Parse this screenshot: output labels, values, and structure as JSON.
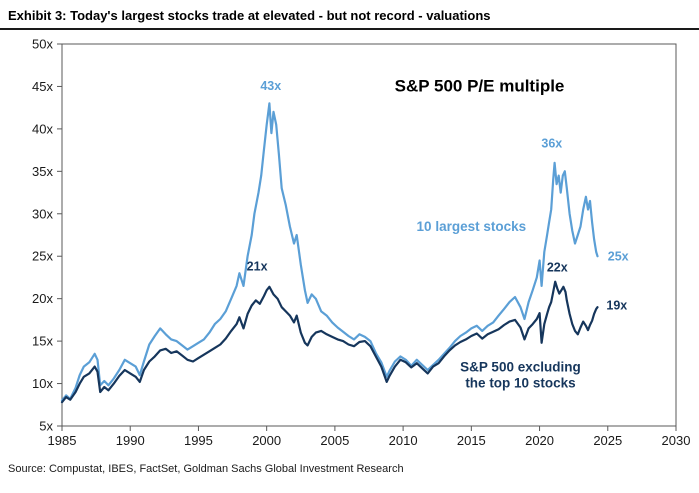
{
  "header": {
    "title": "Exhibit 3: Today's largest stocks trade at elevated - but not record - valuations"
  },
  "footer": {
    "source": "Source: Compustat, IBES, FactSet, Goldman Sachs Global Investment Research"
  },
  "colors": {
    "light_blue": "#5b9fd6",
    "navy": "#16365c",
    "frame": "#595959",
    "axis_text": "#1a1a1a"
  },
  "chart_data": {
    "type": "line",
    "title": "S&P 500 P/E multiple",
    "xlim": [
      1985,
      2030
    ],
    "ylim": [
      5,
      50
    ],
    "x_ticks": [
      1985,
      1990,
      1995,
      2000,
      2005,
      2010,
      2015,
      2020,
      2025,
      2030
    ],
    "y_ticks": [
      5,
      10,
      15,
      20,
      25,
      30,
      35,
      40,
      45,
      50
    ],
    "y_tick_suffix": "x",
    "grid": false,
    "legend_position": "inline-annotations",
    "series": [
      {
        "name": "10 largest stocks",
        "color": "#5b9fd6",
        "width": 2.2,
        "points": [
          [
            1985.0,
            8.0
          ],
          [
            1985.3,
            8.6
          ],
          [
            1985.6,
            8.2
          ],
          [
            1986.0,
            9.5
          ],
          [
            1986.3,
            11.0
          ],
          [
            1986.6,
            12.0
          ],
          [
            1987.0,
            12.5
          ],
          [
            1987.4,
            13.5
          ],
          [
            1987.6,
            12.8
          ],
          [
            1987.8,
            9.8
          ],
          [
            1988.1,
            10.3
          ],
          [
            1988.4,
            9.8
          ],
          [
            1988.8,
            10.6
          ],
          [
            1989.2,
            11.6
          ],
          [
            1989.6,
            12.8
          ],
          [
            1990.0,
            12.4
          ],
          [
            1990.4,
            12.0
          ],
          [
            1990.7,
            11.0
          ],
          [
            1991.0,
            12.6
          ],
          [
            1991.4,
            14.6
          ],
          [
            1991.8,
            15.6
          ],
          [
            1992.2,
            16.5
          ],
          [
            1992.6,
            15.8
          ],
          [
            1993.0,
            15.2
          ],
          [
            1993.4,
            15.0
          ],
          [
            1993.8,
            14.5
          ],
          [
            1994.2,
            14.0
          ],
          [
            1994.6,
            14.4
          ],
          [
            1995.0,
            14.8
          ],
          [
            1995.4,
            15.2
          ],
          [
            1995.8,
            16.0
          ],
          [
            1996.2,
            17.0
          ],
          [
            1996.6,
            17.6
          ],
          [
            1997.0,
            18.5
          ],
          [
            1997.4,
            20.0
          ],
          [
            1997.8,
            21.5
          ],
          [
            1998.0,
            23.0
          ],
          [
            1998.3,
            21.5
          ],
          [
            1998.6,
            25.0
          ],
          [
            1998.9,
            27.5
          ],
          [
            1999.1,
            30.0
          ],
          [
            1999.4,
            32.5
          ],
          [
            1999.6,
            34.5
          ],
          [
            1999.8,
            37.5
          ],
          [
            2000.0,
            40.5
          ],
          [
            2000.2,
            43.0
          ],
          [
            2000.35,
            39.5
          ],
          [
            2000.5,
            42.0
          ],
          [
            2000.7,
            40.5
          ],
          [
            2000.9,
            37.0
          ],
          [
            2001.1,
            33.0
          ],
          [
            2001.4,
            31.0
          ],
          [
            2001.7,
            28.5
          ],
          [
            2002.0,
            26.5
          ],
          [
            2002.2,
            27.5
          ],
          [
            2002.5,
            24.0
          ],
          [
            2002.8,
            21.0
          ],
          [
            2003.0,
            19.5
          ],
          [
            2003.3,
            20.5
          ],
          [
            2003.6,
            20.0
          ],
          [
            2004.0,
            18.5
          ],
          [
            2004.4,
            18.0
          ],
          [
            2004.8,
            17.2
          ],
          [
            2005.2,
            16.6
          ],
          [
            2005.6,
            16.1
          ],
          [
            2006.0,
            15.6
          ],
          [
            2006.4,
            15.2
          ],
          [
            2006.8,
            15.8
          ],
          [
            2007.2,
            15.5
          ],
          [
            2007.6,
            15.0
          ],
          [
            2008.0,
            13.6
          ],
          [
            2008.4,
            12.5
          ],
          [
            2008.8,
            10.8
          ],
          [
            2009.0,
            11.5
          ],
          [
            2009.4,
            12.6
          ],
          [
            2009.8,
            13.2
          ],
          [
            2010.2,
            12.8
          ],
          [
            2010.6,
            12.1
          ],
          [
            2011.0,
            12.8
          ],
          [
            2011.4,
            12.2
          ],
          [
            2011.8,
            11.6
          ],
          [
            2012.2,
            12.2
          ],
          [
            2012.6,
            12.8
          ],
          [
            2013.0,
            13.5
          ],
          [
            2013.4,
            14.2
          ],
          [
            2013.8,
            15.0
          ],
          [
            2014.2,
            15.6
          ],
          [
            2014.6,
            16.0
          ],
          [
            2015.0,
            16.5
          ],
          [
            2015.4,
            16.8
          ],
          [
            2015.8,
            16.2
          ],
          [
            2016.2,
            16.8
          ],
          [
            2016.6,
            17.2
          ],
          [
            2017.0,
            18.0
          ],
          [
            2017.4,
            18.8
          ],
          [
            2017.8,
            19.6
          ],
          [
            2018.2,
            20.2
          ],
          [
            2018.6,
            19.0
          ],
          [
            2018.9,
            17.6
          ],
          [
            2019.2,
            19.6
          ],
          [
            2019.5,
            21.0
          ],
          [
            2019.8,
            22.5
          ],
          [
            2020.0,
            24.5
          ],
          [
            2020.15,
            21.5
          ],
          [
            2020.35,
            25.5
          ],
          [
            2020.55,
            27.5
          ],
          [
            2020.7,
            29.0
          ],
          [
            2020.85,
            30.5
          ],
          [
            2021.0,
            34.0
          ],
          [
            2021.1,
            36.0
          ],
          [
            2021.25,
            33.5
          ],
          [
            2021.4,
            34.5
          ],
          [
            2021.55,
            32.5
          ],
          [
            2021.7,
            34.5
          ],
          [
            2021.85,
            35.0
          ],
          [
            2022.0,
            33.0
          ],
          [
            2022.2,
            30.0
          ],
          [
            2022.4,
            28.0
          ],
          [
            2022.6,
            26.5
          ],
          [
            2022.8,
            27.5
          ],
          [
            2023.0,
            28.5
          ],
          [
            2023.2,
            30.5
          ],
          [
            2023.4,
            32.0
          ],
          [
            2023.55,
            30.5
          ],
          [
            2023.7,
            31.5
          ],
          [
            2023.85,
            29.0
          ],
          [
            2024.0,
            27.0
          ],
          [
            2024.15,
            25.5
          ],
          [
            2024.25,
            25.0
          ]
        ]
      },
      {
        "name": "S&P 500 excluding the top 10 stocks",
        "color": "#16365c",
        "width": 2.2,
        "points": [
          [
            1985.0,
            7.8
          ],
          [
            1985.3,
            8.4
          ],
          [
            1985.6,
            8.1
          ],
          [
            1986.0,
            9.0
          ],
          [
            1986.3,
            10.0
          ],
          [
            1986.6,
            10.8
          ],
          [
            1987.0,
            11.2
          ],
          [
            1987.4,
            12.0
          ],
          [
            1987.6,
            11.4
          ],
          [
            1987.8,
            9.0
          ],
          [
            1988.1,
            9.6
          ],
          [
            1988.4,
            9.2
          ],
          [
            1988.8,
            10.0
          ],
          [
            1989.2,
            10.9
          ],
          [
            1989.6,
            11.6
          ],
          [
            1990.0,
            11.2
          ],
          [
            1990.4,
            10.8
          ],
          [
            1990.7,
            10.2
          ],
          [
            1991.0,
            11.6
          ],
          [
            1991.4,
            12.6
          ],
          [
            1991.8,
            13.2
          ],
          [
            1992.2,
            13.9
          ],
          [
            1992.6,
            14.1
          ],
          [
            1993.0,
            13.6
          ],
          [
            1993.4,
            13.8
          ],
          [
            1993.8,
            13.3
          ],
          [
            1994.2,
            12.8
          ],
          [
            1994.6,
            12.6
          ],
          [
            1995.0,
            13.0
          ],
          [
            1995.4,
            13.4
          ],
          [
            1995.8,
            13.8
          ],
          [
            1996.2,
            14.2
          ],
          [
            1996.6,
            14.6
          ],
          [
            1997.0,
            15.3
          ],
          [
            1997.4,
            16.2
          ],
          [
            1997.8,
            17.0
          ],
          [
            1998.0,
            17.8
          ],
          [
            1998.3,
            16.5
          ],
          [
            1998.6,
            18.2
          ],
          [
            1998.9,
            19.2
          ],
          [
            1999.2,
            19.8
          ],
          [
            1999.5,
            19.4
          ],
          [
            1999.8,
            20.3
          ],
          [
            2000.0,
            21.0
          ],
          [
            2000.2,
            21.4
          ],
          [
            2000.5,
            20.5
          ],
          [
            2000.8,
            20.0
          ],
          [
            2001.1,
            19.0
          ],
          [
            2001.4,
            18.5
          ],
          [
            2001.7,
            18.0
          ],
          [
            2002.0,
            17.2
          ],
          [
            2002.2,
            18.0
          ],
          [
            2002.5,
            16.0
          ],
          [
            2002.8,
            14.8
          ],
          [
            2003.0,
            14.5
          ],
          [
            2003.3,
            15.5
          ],
          [
            2003.6,
            16.0
          ],
          [
            2004.0,
            16.2
          ],
          [
            2004.4,
            15.8
          ],
          [
            2004.8,
            15.5
          ],
          [
            2005.2,
            15.2
          ],
          [
            2005.6,
            15.0
          ],
          [
            2006.0,
            14.6
          ],
          [
            2006.4,
            14.4
          ],
          [
            2006.8,
            14.9
          ],
          [
            2007.2,
            15.0
          ],
          [
            2007.6,
            14.4
          ],
          [
            2008.0,
            13.2
          ],
          [
            2008.4,
            12.0
          ],
          [
            2008.8,
            10.2
          ],
          [
            2009.0,
            10.9
          ],
          [
            2009.4,
            12.0
          ],
          [
            2009.8,
            12.8
          ],
          [
            2010.2,
            12.5
          ],
          [
            2010.6,
            11.9
          ],
          [
            2011.0,
            12.4
          ],
          [
            2011.4,
            11.8
          ],
          [
            2011.8,
            11.2
          ],
          [
            2012.2,
            12.0
          ],
          [
            2012.6,
            12.4
          ],
          [
            2013.0,
            13.2
          ],
          [
            2013.4,
            13.9
          ],
          [
            2013.8,
            14.5
          ],
          [
            2014.2,
            14.9
          ],
          [
            2014.6,
            15.2
          ],
          [
            2015.0,
            15.6
          ],
          [
            2015.4,
            15.9
          ],
          [
            2015.8,
            15.3
          ],
          [
            2016.2,
            15.8
          ],
          [
            2016.6,
            16.1
          ],
          [
            2017.0,
            16.4
          ],
          [
            2017.4,
            16.9
          ],
          [
            2017.8,
            17.3
          ],
          [
            2018.2,
            17.5
          ],
          [
            2018.6,
            16.6
          ],
          [
            2018.9,
            15.2
          ],
          [
            2019.2,
            16.5
          ],
          [
            2019.5,
            17.0
          ],
          [
            2019.8,
            17.6
          ],
          [
            2020.0,
            18.3
          ],
          [
            2020.15,
            14.8
          ],
          [
            2020.35,
            17.0
          ],
          [
            2020.55,
            18.2
          ],
          [
            2020.7,
            19.0
          ],
          [
            2020.85,
            19.6
          ],
          [
            2021.0,
            20.8
          ],
          [
            2021.15,
            22.0
          ],
          [
            2021.3,
            21.2
          ],
          [
            2021.45,
            20.6
          ],
          [
            2021.6,
            21.0
          ],
          [
            2021.75,
            21.4
          ],
          [
            2021.9,
            20.8
          ],
          [
            2022.0,
            19.8
          ],
          [
            2022.2,
            18.2
          ],
          [
            2022.4,
            17.0
          ],
          [
            2022.6,
            16.2
          ],
          [
            2022.8,
            15.8
          ],
          [
            2023.0,
            16.6
          ],
          [
            2023.2,
            17.3
          ],
          [
            2023.4,
            16.8
          ],
          [
            2023.55,
            16.3
          ],
          [
            2023.7,
            16.9
          ],
          [
            2023.85,
            17.4
          ],
          [
            2024.0,
            18.2
          ],
          [
            2024.15,
            18.8
          ],
          [
            2024.25,
            19.0
          ]
        ]
      }
    ],
    "annotations": [
      {
        "text": "43x",
        "x": 2000.3,
        "y": 44.6,
        "anchor": "middle",
        "size": 12.5,
        "color": "#5b9fd6"
      },
      {
        "text": "S&P 500 P/E multiple",
        "x": 2015.6,
        "y": 44.4,
        "anchor": "middle",
        "size": 17,
        "color": "#000000"
      },
      {
        "text": "36x",
        "x": 2020.9,
        "y": 37.8,
        "anchor": "middle",
        "size": 12.5,
        "color": "#5b9fd6"
      },
      {
        "text": "25x",
        "x": 2025.0,
        "y": 24.5,
        "anchor": "start",
        "size": 12.5,
        "color": "#5b9fd6"
      },
      {
        "text": "21x",
        "x": 1999.3,
        "y": 23.3,
        "anchor": "middle",
        "size": 12.5,
        "color": "#16365c"
      },
      {
        "text": "22x",
        "x": 2021.3,
        "y": 23.2,
        "anchor": "middle",
        "size": 12.5,
        "color": "#16365c"
      },
      {
        "text": "19x",
        "x": 2024.9,
        "y": 18.7,
        "anchor": "start",
        "size": 12.5,
        "color": "#16365c"
      },
      {
        "text": "10 largest stocks",
        "x": 2015.0,
        "y": 28.0,
        "anchor": "middle",
        "size": 13.5,
        "color": "#5b9fd6"
      },
      {
        "lines": [
          "S&P 500 excluding",
          "the top 10 stocks"
        ],
        "x": 2018.6,
        "y": 11.4,
        "anchor": "middle",
        "size": 13.5,
        "color": "#16365c"
      }
    ]
  }
}
